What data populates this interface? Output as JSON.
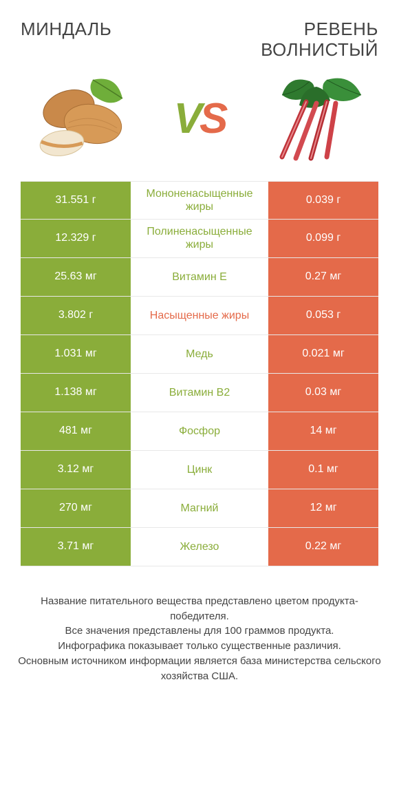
{
  "titles": {
    "left": "Миндаль",
    "right": "Ревень\nволнистый"
  },
  "vs": {
    "v": "V",
    "s": "S"
  },
  "colors": {
    "left_bg": "#8aad3a",
    "right_bg": "#e46a4a",
    "mid_left": "#8aad3a",
    "mid_right": "#e46a4a",
    "text_white": "#ffffff"
  },
  "rows": [
    {
      "left": "31.551 г",
      "mid": "Мононенасыщенные жиры",
      "right": "0.039 г",
      "winner": "left"
    },
    {
      "left": "12.329 г",
      "mid": "Полиненасыщенные жиры",
      "right": "0.099 г",
      "winner": "left"
    },
    {
      "left": "25.63 мг",
      "mid": "Витамин E",
      "right": "0.27 мг",
      "winner": "left"
    },
    {
      "left": "3.802 г",
      "mid": "Насыщенные жиры",
      "right": "0.053 г",
      "winner": "right"
    },
    {
      "left": "1.031 мг",
      "mid": "Медь",
      "right": "0.021 мг",
      "winner": "left"
    },
    {
      "left": "1.138 мг",
      "mid": "Витамин B2",
      "right": "0.03 мг",
      "winner": "left"
    },
    {
      "left": "481 мг",
      "mid": "Фосфор",
      "right": "14 мг",
      "winner": "left"
    },
    {
      "left": "3.12 мг",
      "mid": "Цинк",
      "right": "0.1 мг",
      "winner": "left"
    },
    {
      "left": "270 мг",
      "mid": "Магний",
      "right": "12 мг",
      "winner": "left"
    },
    {
      "left": "3.71 мг",
      "mid": "Железо",
      "right": "0.22 мг",
      "winner": "left"
    }
  ],
  "footer": {
    "l1": "Название питательного вещества представлено цветом продукта-победителя.",
    "l2": "Все значения представлены для 100 граммов продукта.",
    "l3": "Инфографика показывает только существенные различия.",
    "l4": "Основным источником информации является база министерства сельского хозяйства США."
  }
}
